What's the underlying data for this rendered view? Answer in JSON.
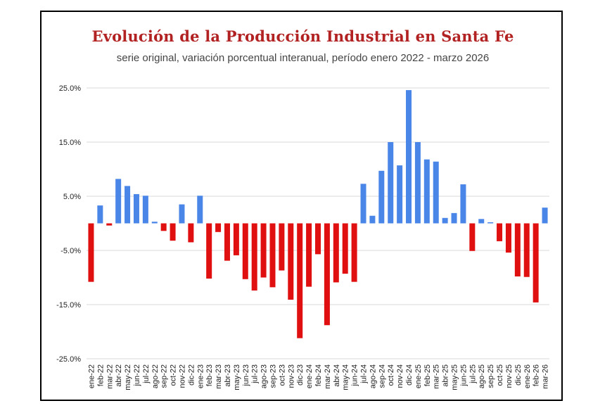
{
  "chart_data": {
    "type": "bar",
    "title": "Evolución de la Producción Industrial en Santa Fe",
    "subtitle": "serie original, variación porcentual interanual, período enero 2022 - marzo  2026",
    "xlabel": "",
    "ylabel": "",
    "ylim": [
      -25,
      25
    ],
    "yticks": [
      25,
      15,
      5,
      -5,
      -15,
      -25
    ],
    "ytick_labels": [
      "25.0%",
      "15.0%",
      "5.0%",
      "-5.0%",
      "-15.0%",
      "-25.0%"
    ],
    "grid": true,
    "legend": "none",
    "colors": {
      "positive": "#4a86e8",
      "negative": "#e01010",
      "grid": "#d9d9d9"
    },
    "categories": [
      "ene-22",
      "feb-22",
      "mar-22",
      "abr-22",
      "may-22",
      "jun-22",
      "jul-22",
      "ago-22",
      "sep-22",
      "oct-22",
      "nov-22",
      "dic-22",
      "ene-23",
      "feb-23",
      "mar-23",
      "abr-23",
      "may-23",
      "jun-23",
      "jul-23",
      "ago-23",
      "sep-23",
      "oct-23",
      "nov-23",
      "dic-23",
      "ene-24",
      "feb-24",
      "mar-24",
      "abr-24",
      "may-24",
      "jun-24",
      "jul-24",
      "ago-24",
      "sep-24",
      "oct-24",
      "nov-24",
      "dic-24",
      "ene-25",
      "feb-25",
      "mar-25",
      "abr-25",
      "may-25",
      "jun-25",
      "jul-25",
      "ago-25",
      "sep-25",
      "oct-25",
      "nov-25",
      "dic-25",
      "ene-26",
      "feb-26",
      "mar-26"
    ],
    "values": [
      -10.8,
      3.3,
      -0.4,
      8.2,
      6.9,
      5.4,
      5.1,
      0.3,
      -1.4,
      -3.2,
      3.5,
      -3.5,
      5.1,
      -10.2,
      -1.6,
      -6.9,
      -5.9,
      -10.3,
      -12.4,
      -10.0,
      -11.8,
      -8.7,
      -14.1,
      -21.2,
      -11.7,
      -5.7,
      -18.8,
      -10.9,
      -9.3,
      -10.8,
      7.3,
      1.4,
      9.7,
      15.0,
      10.7,
      24.6,
      15.0,
      11.8,
      11.4,
      1.0,
      1.9,
      7.2,
      -5.1,
      0.8,
      0.2,
      -3.3,
      -5.4,
      -9.8,
      -9.9,
      -14.6,
      2.9
    ]
  }
}
